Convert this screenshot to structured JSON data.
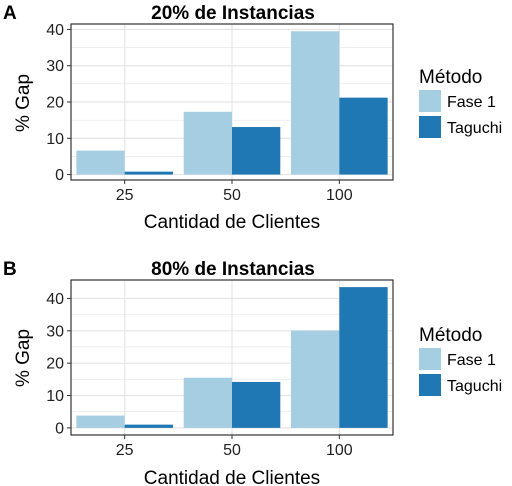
{
  "colors": {
    "fase1": "#a6cee3",
    "taguchi": "#1f78b4",
    "panel_border": "#333333",
    "grid": "#e5e5e5"
  },
  "chart_data": [
    {
      "type": "bar",
      "panel": "A",
      "title": "20% de Instancias",
      "xlabel": "Cantidad de Clientes",
      "ylabel": "% Gap",
      "categories": [
        "25",
        "50",
        "100"
      ],
      "ylim": [
        -1.5,
        41.5
      ],
      "yticks": [
        0,
        10,
        20,
        30,
        40
      ],
      "grid": true,
      "legend": {
        "title": "Método",
        "position": "right"
      },
      "series": [
        {
          "name": "Fase 1",
          "values": [
            6.6,
            17.3,
            39.5
          ]
        },
        {
          "name": "Taguchi",
          "values": [
            0.8,
            13.1,
            21.2
          ]
        }
      ]
    },
    {
      "type": "bar",
      "panel": "B",
      "title": "80% de Instancias",
      "xlabel": "Cantidad de Clientes",
      "ylabel": "% Gap",
      "categories": [
        "25",
        "50",
        "100"
      ],
      "ylim": [
        -2.2,
        45.7
      ],
      "yticks": [
        0,
        10,
        20,
        30,
        40
      ],
      "grid": true,
      "legend": {
        "title": "Método",
        "position": "right"
      },
      "series": [
        {
          "name": "Fase 1",
          "values": [
            3.8,
            15.5,
            30.1
          ]
        },
        {
          "name": "Taguchi",
          "values": [
            1.0,
            14.2,
            43.5
          ]
        }
      ]
    }
  ]
}
